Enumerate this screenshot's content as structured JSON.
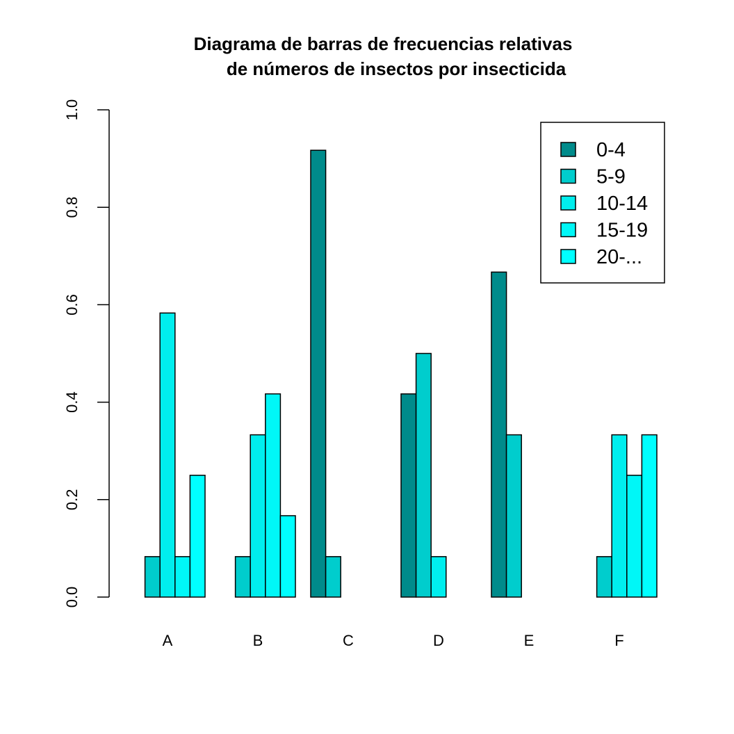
{
  "chart_data": {
    "type": "bar",
    "layout": "grouped",
    "title_lines": [
      "Diagrama de barras de frecuencias relativas",
      "de números de insectos por insecticida"
    ],
    "xlabel": "",
    "ylabel": "",
    "ylim": [
      0,
      1
    ],
    "y_ticks": [
      "0.0",
      "0.2",
      "0.4",
      "0.6",
      "0.8",
      "1.0"
    ],
    "categories": [
      "A",
      "B",
      "C",
      "D",
      "E",
      "F"
    ],
    "series": [
      {
        "name": "0-4",
        "color": "#008B8B",
        "values": [
          0.0,
          0.0,
          0.917,
          0.417,
          0.667,
          0.0
        ]
      },
      {
        "name": "5-9",
        "color": "#00CDCD",
        "values": [
          0.083,
          0.083,
          0.083,
          0.5,
          0.333,
          0.083
        ]
      },
      {
        "name": "10-14",
        "color": "#00EEEE",
        "values": [
          0.583,
          0.333,
          0.0,
          0.083,
          0.0,
          0.333
        ]
      },
      {
        "name": "15-19",
        "color": "#00F7F7",
        "values": [
          0.083,
          0.417,
          0.0,
          0.0,
          0.0,
          0.25
        ]
      },
      {
        "name": "20-...",
        "color": "#00FFFF",
        "values": [
          0.25,
          0.167,
          0.0,
          0.0,
          0.0,
          0.333
        ]
      }
    ],
    "grid": false,
    "legend_position": "top-right"
  }
}
